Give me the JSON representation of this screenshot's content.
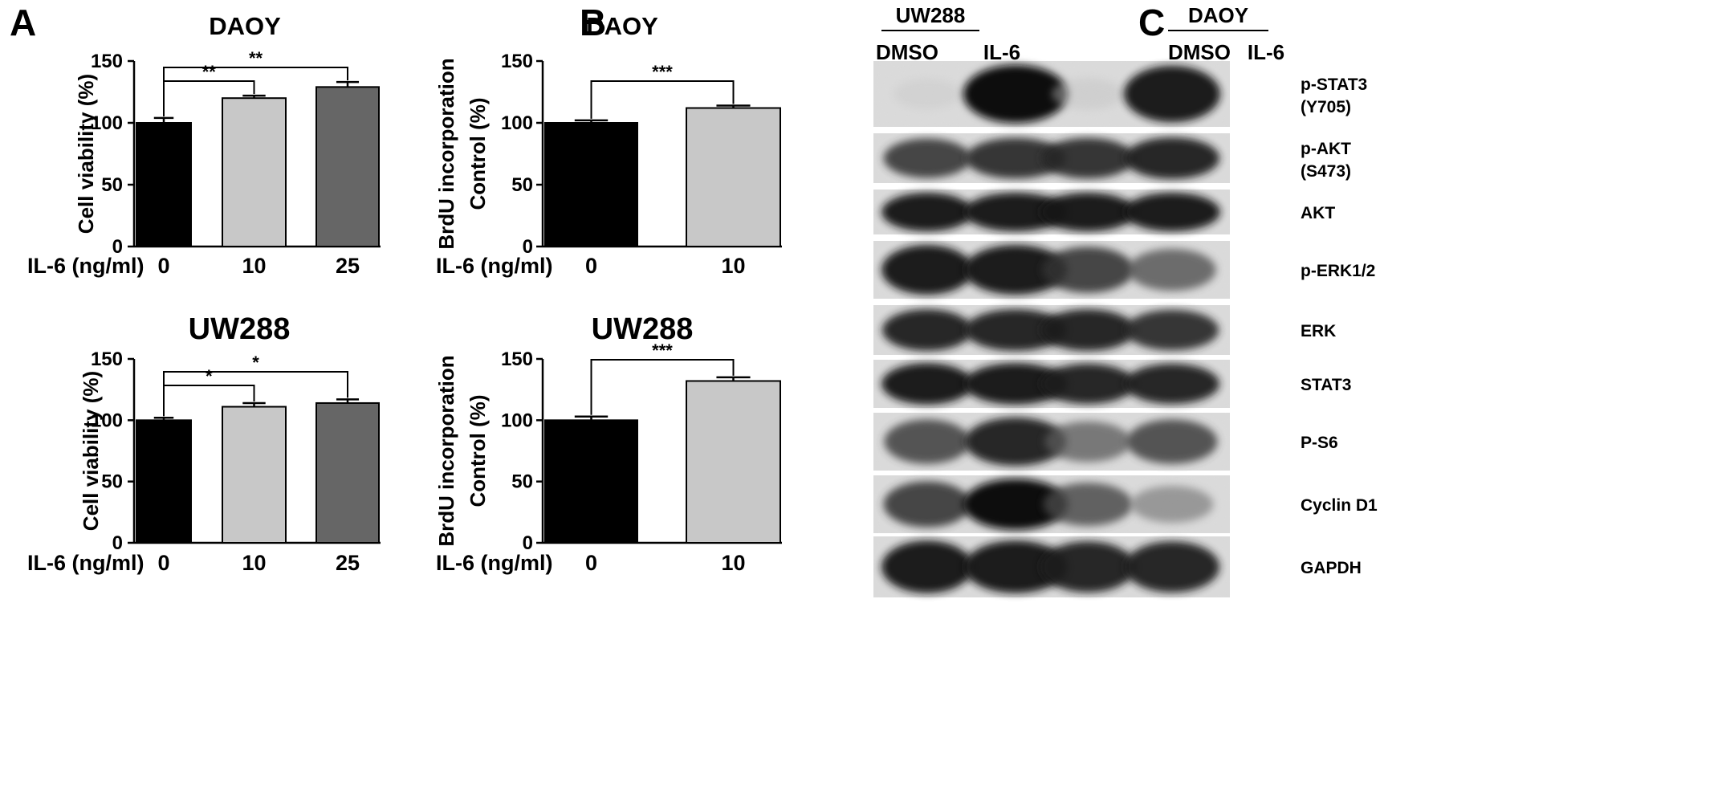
{
  "panels": {
    "A": {
      "letter": "A"
    },
    "B": {
      "letter": "B"
    },
    "C": {
      "letter": "C"
    }
  },
  "chart_data": [
    {
      "id": "A-top",
      "panel": "A",
      "type": "bar",
      "title": "DAOY",
      "xlabel": "IL-6 (ng/ml)",
      "ylabel": "Cell viability (%)",
      "ylim": [
        0,
        150
      ],
      "yticks": [
        "0",
        "50",
        "100",
        "150"
      ],
      "categories": [
        "0",
        "10",
        "25"
      ],
      "values": [
        100,
        120,
        129
      ],
      "errors": [
        4,
        2,
        4
      ],
      "colors": [
        "#000000",
        "#c8c8c8",
        "#666666"
      ],
      "significance": [
        {
          "from": 0,
          "to": 1,
          "label": "**"
        },
        {
          "from": 0,
          "to": 2,
          "label": "**"
        }
      ]
    },
    {
      "id": "A-bottom",
      "panel": "A",
      "type": "bar",
      "title": "UW288",
      "xlabel": "IL-6 (ng/ml)",
      "ylabel": "Cell viability (%)",
      "ylim": [
        0,
        150
      ],
      "yticks": [
        "0",
        "50",
        "100",
        "150"
      ],
      "categories": [
        "0",
        "10",
        "25"
      ],
      "values": [
        100,
        111,
        114
      ],
      "errors": [
        2,
        3,
        3
      ],
      "colors": [
        "#000000",
        "#c8c8c8",
        "#666666"
      ],
      "significance": [
        {
          "from": 0,
          "to": 1,
          "label": "*"
        },
        {
          "from": 0,
          "to": 2,
          "label": "*"
        }
      ]
    },
    {
      "id": "B-top",
      "panel": "B",
      "type": "bar",
      "title": "DAOY",
      "xlabel": "IL-6 (ng/ml)",
      "ylabel_lines": [
        "BrdU incorporation",
        "Control (%)"
      ],
      "ylim": [
        0,
        150
      ],
      "yticks": [
        "0",
        "50",
        "100",
        "150"
      ],
      "categories": [
        "0",
        "10"
      ],
      "values": [
        100,
        112
      ],
      "errors": [
        2,
        2
      ],
      "colors": [
        "#000000",
        "#c8c8c8"
      ],
      "significance": [
        {
          "from": 0,
          "to": 1,
          "label": "***"
        }
      ]
    },
    {
      "id": "B-bottom",
      "panel": "B",
      "type": "bar",
      "title": "UW288",
      "xlabel": "IL-6 (ng/ml)",
      "ylabel_lines": [
        "BrdU incorporation",
        "Control (%)"
      ],
      "ylim": [
        0,
        150
      ],
      "yticks": [
        "0",
        "50",
        "100",
        "150"
      ],
      "categories": [
        "0",
        "10"
      ],
      "values": [
        100,
        132
      ],
      "errors": [
        3,
        3
      ],
      "colors": [
        "#000000",
        "#c8c8c8"
      ],
      "significance": [
        {
          "from": 0,
          "to": 1,
          "label": "***"
        }
      ]
    }
  ],
  "western_blot": {
    "groups": [
      {
        "name": "UW288",
        "lanes": [
          "DMSO",
          "IL-6"
        ]
      },
      {
        "name": "DAOY",
        "lanes": [
          "DMSO",
          "IL-6"
        ]
      }
    ],
    "rows": [
      {
        "label_lines": [
          "p-STAT3",
          "(Y705)"
        ],
        "intensities": [
          0.05,
          1.0,
          0.08,
          0.95
        ]
      },
      {
        "label_lines": [
          "p-AKT",
          "(S473)"
        ],
        "intensities": [
          0.8,
          0.85,
          0.85,
          0.9
        ]
      },
      {
        "label_lines": [
          "AKT"
        ],
        "intensities": [
          0.95,
          0.95,
          0.95,
          0.95
        ]
      },
      {
        "label_lines": [
          "p-ERK1/2"
        ],
        "intensities": [
          0.95,
          0.95,
          0.8,
          0.65
        ]
      },
      {
        "label_lines": [
          "ERK"
        ],
        "intensities": [
          0.9,
          0.9,
          0.9,
          0.85
        ]
      },
      {
        "label_lines": [
          "STAT3"
        ],
        "intensities": [
          0.95,
          0.95,
          0.9,
          0.9
        ]
      },
      {
        "label_lines": [
          "P-S6"
        ],
        "intensities": [
          0.75,
          0.9,
          0.6,
          0.75
        ]
      },
      {
        "label_lines": [
          "Cyclin D1"
        ],
        "intensities": [
          0.8,
          1.0,
          0.7,
          0.45
        ]
      },
      {
        "label_lines": [
          "GAPDH"
        ],
        "intensities": [
          0.95,
          0.95,
          0.9,
          0.9
        ]
      }
    ]
  }
}
